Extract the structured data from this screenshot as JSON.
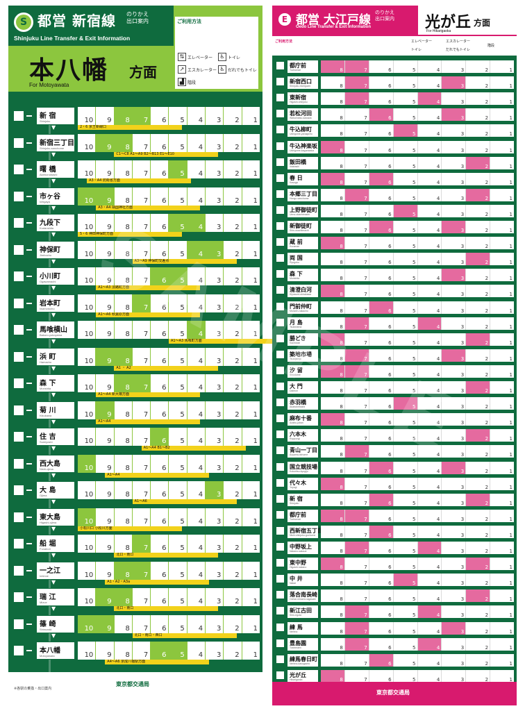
{
  "left": {
    "line_badge": "S",
    "operator_line": "都営 新宿線",
    "subtitle": "のりかえ\n出口案内",
    "english": "Shinjuku Line Transfer & Exit Information",
    "destination": "本八幡",
    "destination_suffix": "方面",
    "destination_en": "For Motoyawata",
    "legend_title": "ご利用方法",
    "legend_items": [
      "エレベーター",
      "トイレ",
      "エスカレーター",
      "だれでもトイレ",
      "階段"
    ],
    "stations": [
      {
        "jp": "新 宿",
        "en": "Shinjuku",
        "exit": "2・6 京王新線口"
      },
      {
        "jp": "新宿三丁目",
        "en": "Shinjuku-sanchome",
        "exit": "C1〜C8 A1〜A9 B2〜B13 E1〜E10"
      },
      {
        "jp": "曙 橋",
        "en": "Akebonobashi",
        "exit": "A3・A4 防衛省方面"
      },
      {
        "jp": "市ヶ谷",
        "en": "Ichigaya",
        "exit": "A3・A4 靖国神社方面"
      },
      {
        "jp": "九段下",
        "en": "Kudanshita",
        "exit": "5・6 神田神保町方面"
      },
      {
        "jp": "神保町",
        "en": "Jimbocho",
        "exit": "A3〜A9 神保町交差点"
      },
      {
        "jp": "小川町",
        "en": "Ogawamachi",
        "exit": "A1〜A3 淡路町方面"
      },
      {
        "jp": "岩本町",
        "en": "Iwamotocho",
        "exit": "A1〜A6 秋葉原方面"
      },
      {
        "jp": "馬喰横山",
        "en": "Bakuro-yokoyama",
        "exit": "A1〜A3 馬喰町方面"
      },
      {
        "jp": "浜 町",
        "en": "Hamacho",
        "exit": "A1 ・ A2"
      },
      {
        "jp": "森 下",
        "en": "Morishita",
        "exit": "A1〜A4 新大橋方面"
      },
      {
        "jp": "菊 川",
        "en": "Kikukawa",
        "exit": "A1〜A4"
      },
      {
        "jp": "住 吉",
        "en": "Sumiyoshi",
        "exit": "A1〜A4 B1〜B2"
      },
      {
        "jp": "西大島",
        "en": "Nishi-ojima",
        "exit": "A1〜A4"
      },
      {
        "jp": "大 島",
        "en": "Ojima",
        "exit": "A1〜A6"
      },
      {
        "jp": "東大島",
        "en": "Higashi-ojima",
        "exit": "小松川口 小松川方面"
      },
      {
        "jp": "船 堀",
        "en": "Funabori",
        "exit": "北口・南口"
      },
      {
        "jp": "一之江",
        "en": "Ichinoe",
        "exit": "A1・A2・A3a"
      },
      {
        "jp": "瑞 江",
        "en": "Mizue",
        "exit": "北口・南口"
      },
      {
        "jp": "篠 崎",
        "en": "Shinozaki",
        "exit": "北口・南口・西口"
      },
      {
        "jp": "本八幡",
        "en": "Motoyawata",
        "exit": "A4〜A6 京成八幡駅方面"
      }
    ],
    "car_numbers": [
      "10",
      "9",
      "8",
      "7",
      "6",
      "5",
      "4",
      "3",
      "2",
      "1"
    ],
    "footer_brand": "東京都交通局",
    "footer_note": "※各駅の乗換・出口案内"
  },
  "right": {
    "line_badge": "E",
    "operator_line": "都営 大江戸線",
    "subtitle": "のりかえ\n出口案内",
    "english": "Oedo Line Transfer & Exit Information",
    "destination": "光が丘",
    "destination_suffix": "方面",
    "destination_en": "For Hikarigaoka",
    "legend_title": "ご利用方法",
    "legend_items": [
      "エレベーター",
      "トイレ",
      "エスカレーター",
      "だれでもトイレ",
      "階段"
    ],
    "stations": [
      {
        "jp": "都庁前",
        "en": "Tochomae"
      },
      {
        "jp": "新宿西口",
        "en": "Shinjuku-nishiguchi"
      },
      {
        "jp": "東新宿",
        "en": "Higashi-shinjuku"
      },
      {
        "jp": "若松河田",
        "en": "Wakamatsu-kawada"
      },
      {
        "jp": "牛込柳町",
        "en": "Ushigome-yanagicho"
      },
      {
        "jp": "牛込神楽坂",
        "en": "Ushigome-kagurazaka"
      },
      {
        "jp": "飯田橋",
        "en": "Iidabashi"
      },
      {
        "jp": "春 日",
        "en": "Kasuga"
      },
      {
        "jp": "本郷三丁目",
        "en": "Hongo-sanchome"
      },
      {
        "jp": "上野御徒町",
        "en": "Ueno-okachimachi"
      },
      {
        "jp": "新御徒町",
        "en": "Shin-okachimachi"
      },
      {
        "jp": "蔵 前",
        "en": "Kuramae"
      },
      {
        "jp": "両 国",
        "en": "Ryogoku"
      },
      {
        "jp": "森 下",
        "en": "Morishita"
      },
      {
        "jp": "清澄白河",
        "en": "Kiyosumi-shirakawa"
      },
      {
        "jp": "門前仲町",
        "en": "Monzen-nakacho"
      },
      {
        "jp": "月 島",
        "en": "Tsukishima"
      },
      {
        "jp": "勝どき",
        "en": "Kachidoki"
      },
      {
        "jp": "築地市場",
        "en": "Tsukijishijo"
      },
      {
        "jp": "汐 留",
        "en": "Shiodome"
      },
      {
        "jp": "大 門",
        "en": "Daimon"
      },
      {
        "jp": "赤羽橋",
        "en": "Akabanebashi"
      },
      {
        "jp": "麻布十番",
        "en": "Azabu-juban"
      },
      {
        "jp": "六本木",
        "en": "Roppongi"
      },
      {
        "jp": "青山一丁目",
        "en": "Aoyama-itchome"
      },
      {
        "jp": "国立競技場",
        "en": "Kokuritsu-kyogijo"
      },
      {
        "jp": "代々木",
        "en": "Yoyogi"
      },
      {
        "jp": "新 宿",
        "en": "Shinjuku"
      },
      {
        "jp": "都庁前",
        "en": "Tochomae"
      },
      {
        "jp": "西新宿五丁目",
        "en": "Nishi-shinjuku-gochome"
      },
      {
        "jp": "中野坂上",
        "en": "Nakano-sakaue"
      },
      {
        "jp": "東中野",
        "en": "Higashi-nakano"
      },
      {
        "jp": "中 井",
        "en": "Nakai"
      },
      {
        "jp": "落合南長崎",
        "en": "Ochiai-minami-nagasaki"
      },
      {
        "jp": "新江古田",
        "en": "Shin-egota"
      },
      {
        "jp": "練 馬",
        "en": "Nerima"
      },
      {
        "jp": "豊島園",
        "en": "Toshimaen"
      },
      {
        "jp": "練馬春日町",
        "en": "Nerima-kasugacho"
      },
      {
        "jp": "光が丘",
        "en": "Hikarigaoka"
      }
    ],
    "car_numbers": [
      "8",
      "7",
      "6",
      "5",
      "4",
      "3",
      "2",
      "1"
    ],
    "footer_brand": "東京都交通局"
  },
  "colors": {
    "shinjuku_green": "#0f6b3e",
    "shinjuku_light": "#8cc63e",
    "oedo_magenta": "#d81a6e",
    "exit_yellow": "#f2d21b"
  }
}
